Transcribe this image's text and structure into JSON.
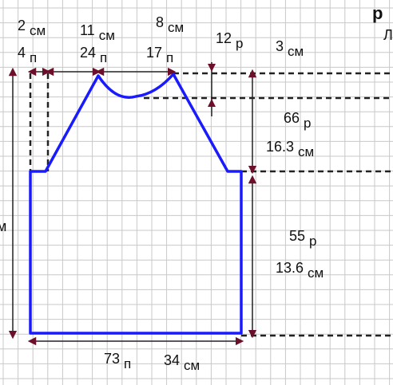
{
  "labels": [
    {
      "num": "2",
      "unit": "см"
    },
    {
      "num": "4",
      "unit": "п"
    },
    {
      "num": "11",
      "unit": "см"
    },
    {
      "num": "24",
      "unit": "п"
    },
    {
      "num": "8",
      "unit": "см"
    },
    {
      "num": "17",
      "unit": "п"
    },
    {
      "num": "12",
      "unit": "р"
    },
    {
      "num": "3",
      "unit": "см"
    },
    {
      "num": "66",
      "unit": "р"
    },
    {
      "num": "16.3",
      "unit": "см"
    },
    {
      "num": "55",
      "unit": "р"
    },
    {
      "num": "13.6",
      "unit": "см"
    },
    {
      "num": "73",
      "unit": "п"
    },
    {
      "num": "34",
      "unit": "см"
    }
  ],
  "edge_texts": [
    "р",
    "Л",
    "м"
  ]
}
